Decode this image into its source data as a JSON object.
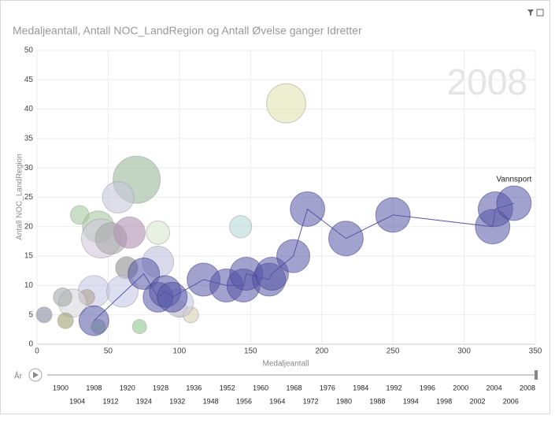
{
  "chart_data": {
    "type": "scatter",
    "title": "Medaljeantall, Antall NOC_LandRegion og Antall Øvelse ganger Idretter",
    "xlabel": "Medaljeantall",
    "ylabel": "Antall NOC_LandRegion",
    "xlim": [
      0,
      350
    ],
    "xticks": [
      0,
      50,
      100,
      150,
      200,
      250,
      300,
      350
    ],
    "ylim": [
      0,
      50
    ],
    "yticks": [
      0,
      5,
      10,
      15,
      20,
      25,
      30,
      35,
      40,
      45,
      50
    ],
    "grid": true,
    "play_year": 2008,
    "play_axis_label": "År",
    "years": [
      1900,
      1904,
      1908,
      1912,
      1920,
      1924,
      1928,
      1932,
      1936,
      1948,
      1952,
      1956,
      1960,
      1964,
      1968,
      1972,
      1976,
      1980,
      1984,
      1988,
      1992,
      1994,
      1996,
      1998,
      2000,
      2002,
      2004,
      2006,
      2008
    ],
    "series": [
      {
        "name": "Vannsport",
        "color": "#5656a8",
        "x": [
          40,
          75,
          85,
          90,
          95,
          117,
          133,
          145,
          147,
          163,
          165,
          180,
          190,
          217,
          250,
          320,
          322,
          335
        ],
        "values": [
          4,
          12,
          8,
          9,
          8,
          11,
          10,
          10,
          12,
          11,
          12,
          15,
          23,
          18,
          22,
          20,
          23,
          24
        ],
        "sizes": [
          18,
          20,
          18,
          20,
          18,
          22,
          22,
          22,
          22,
          22,
          22,
          22,
          24,
          24,
          24,
          24,
          24,
          24
        ]
      },
      {
        "colors": [
          "#e3e3b0",
          "#9ab89a",
          "#c8c8dc",
          "#a8c8a0",
          "#a8c8a0",
          "#d0c8dc",
          "#a8a8a8",
          "#b090b0",
          "#d8e8d0",
          "#b8d8d8",
          "#909090",
          "#c0c0e0",
          "#c8c8e8",
          "#b0a090",
          "#d8d8e0",
          "#8888a0",
          "#a0a070",
          "#90b890",
          "#90c890",
          "#d8c8a8",
          "#d8d0b0",
          "#c8c8e8",
          "#c8c8e8",
          "#a0a8a8"
        ],
        "x": [
          175,
          70,
          57,
          30,
          43,
          45,
          52,
          65,
          85,
          143,
          63,
          85,
          40,
          35,
          25,
          5,
          20,
          43,
          72,
          100,
          108,
          100,
          60,
          18
        ],
        "values": [
          41,
          28,
          25,
          22,
          20,
          18,
          18,
          19,
          19,
          20,
          13,
          14,
          9,
          8,
          7,
          5,
          4,
          3,
          3,
          6,
          5,
          7,
          9,
          8
        ],
        "sizes": [
          31,
          45,
          20,
          7,
          20,
          31,
          20,
          20,
          11,
          10,
          10,
          20,
          20,
          5,
          16,
          5,
          5,
          4,
          4,
          5,
          5,
          16,
          20,
          7
        ]
      }
    ]
  }
}
